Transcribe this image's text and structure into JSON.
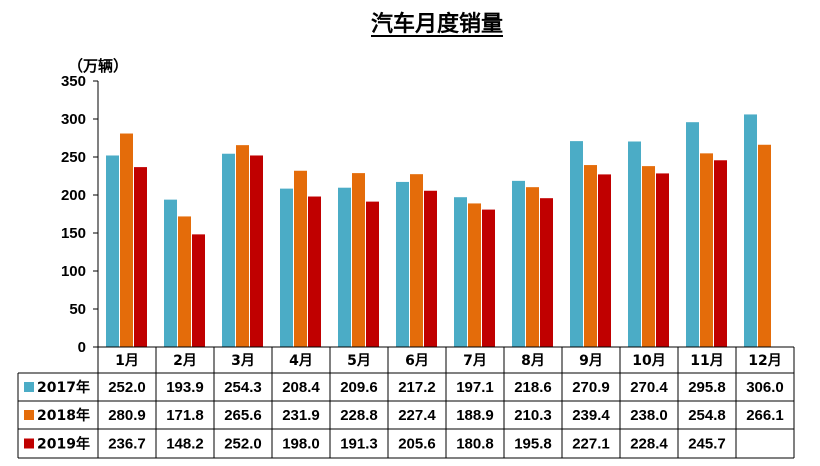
{
  "chart_data": {
    "type": "bar",
    "title": "汽车月度销量",
    "ylabel": "（万辆）",
    "ylim": [
      0,
      350
    ],
    "yticks": [
      "0",
      "50",
      "100",
      "150",
      "200",
      "250",
      "300",
      "350"
    ],
    "categories": [
      "1月",
      "2月",
      "3月",
      "4月",
      "5月",
      "6月",
      "7月",
      "8月",
      "9月",
      "10月",
      "11月",
      "12月"
    ],
    "series": [
      {
        "name": "2017年",
        "color": "#4BACC6",
        "values": [
          252.0,
          193.9,
          254.3,
          208.4,
          209.6,
          217.2,
          197.1,
          218.6,
          270.9,
          270.4,
          295.8,
          306.0
        ],
        "labels": [
          "252.0",
          "193.9",
          "254.3",
          "208.4",
          "209.6",
          "217.2",
          "197.1",
          "218.6",
          "270.9",
          "270.4",
          "295.8",
          "306.0"
        ]
      },
      {
        "name": "2018年",
        "color": "#E46C0A",
        "values": [
          280.9,
          171.8,
          265.6,
          231.9,
          228.8,
          227.4,
          188.9,
          210.3,
          239.4,
          238.0,
          254.8,
          266.1
        ],
        "labels": [
          "280.9",
          "171.8",
          "265.6",
          "231.9",
          "228.8",
          "227.4",
          "188.9",
          "210.3",
          "239.4",
          "238.0",
          "254.8",
          "266.1"
        ]
      },
      {
        "name": "2019年",
        "color": "#C00000",
        "values": [
          236.7,
          148.2,
          252.0,
          198.0,
          191.3,
          205.6,
          180.8,
          195.8,
          227.1,
          228.4,
          245.7,
          null
        ],
        "labels": [
          "236.7",
          "148.2",
          "252.0",
          "198.0",
          "191.3",
          "205.6",
          "180.8",
          "195.8",
          "227.1",
          "228.4",
          "245.7",
          ""
        ]
      }
    ],
    "legend": "data-table-left",
    "grid": false
  }
}
